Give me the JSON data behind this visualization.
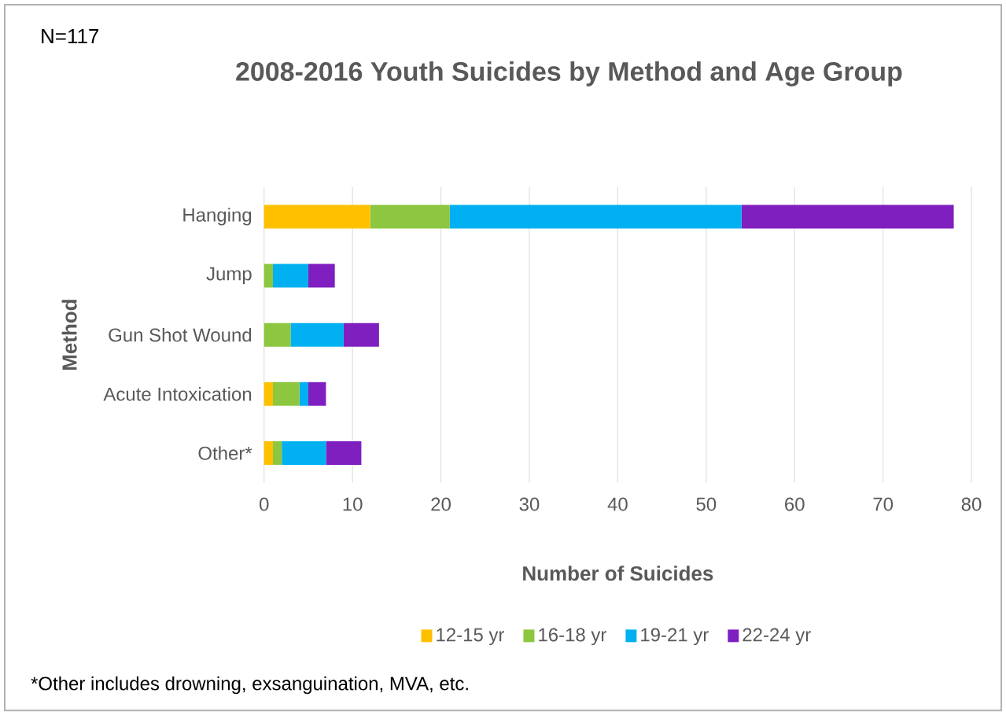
{
  "chart_data": {
    "type": "bar",
    "orientation": "horizontal",
    "stacked": true,
    "title": "2008-2016 Youth Suicides by Method and Age Group",
    "xlabel": "Number of Suicides",
    "ylabel": "Method",
    "categories": [
      "Hanging",
      "Jump",
      "Gun Shot Wound",
      "Acute Intoxication",
      "Other*"
    ],
    "series": [
      {
        "name": "12-15 yr",
        "color": "#ffc000",
        "values": [
          12,
          0,
          0,
          1,
          1
        ]
      },
      {
        "name": "16-18 yr",
        "color": "#8dc63f",
        "values": [
          9,
          1,
          3,
          3,
          1
        ]
      },
      {
        "name": "19-21 yr",
        "color": "#00b0f0",
        "values": [
          33,
          4,
          6,
          1,
          5
        ]
      },
      {
        "name": "22-24 yr",
        "color": "#7f1fbf",
        "values": [
          24,
          3,
          4,
          2,
          4
        ]
      }
    ],
    "xlim": [
      0,
      80
    ],
    "xticks": [
      0,
      10,
      20,
      30,
      40,
      50,
      60,
      70,
      80
    ],
    "grid": "x",
    "legend": "bottom",
    "annotations": [
      "N=117",
      "*Other includes drowning, exsanguination, MVA, etc."
    ]
  }
}
